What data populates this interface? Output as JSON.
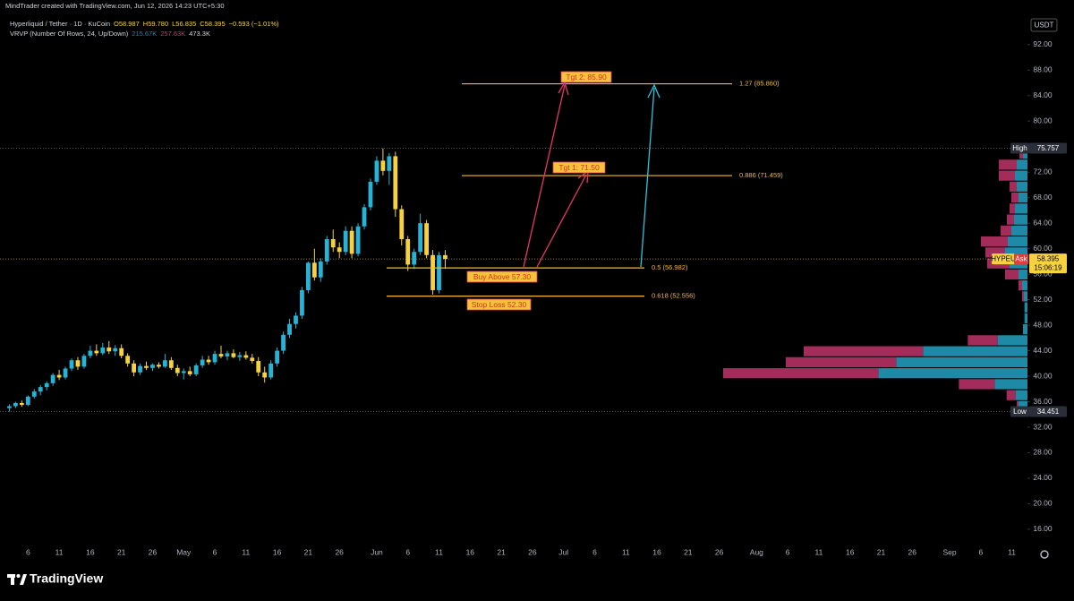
{
  "header": {
    "credit": "MindTrader created with TradingView.com, Jun 12, 2026 14:23 UTC+5:30",
    "symbol": "Hyperliquid / Tether · 1D · KuCoin",
    "ohlc": [
      "O58.987",
      "H59.780",
      "L56.835",
      "C58.395",
      "−0.593 (−1.01%)"
    ],
    "indicator": "VRVP (Number Of Rows, 24, Up/Down)",
    "indicator_values": [
      "215.67K",
      "257.63K",
      "473.3K"
    ]
  },
  "chart_data": {
    "type": "candlestick",
    "x": [
      "2026-04-03",
      "2026-04-04",
      "2026-04-05",
      "2026-04-06",
      "2026-04-07",
      "2026-04-08",
      "2026-04-09",
      "2026-04-10",
      "2026-04-11",
      "2026-04-12",
      "2026-04-13",
      "2026-04-14",
      "2026-04-15",
      "2026-04-16",
      "2026-04-17",
      "2026-04-18",
      "2026-04-19",
      "2026-04-20",
      "2026-04-21",
      "2026-04-22",
      "2026-04-23",
      "2026-04-24",
      "2026-04-25",
      "2026-04-26",
      "2026-04-27",
      "2026-04-28",
      "2026-04-29",
      "2026-04-30",
      "2026-05-01",
      "2026-05-02",
      "2026-05-03",
      "2026-05-04",
      "2026-05-05",
      "2026-05-06",
      "2026-05-07",
      "2026-05-08",
      "2026-05-09",
      "2026-05-10",
      "2026-05-11",
      "2026-05-12",
      "2026-05-13",
      "2026-05-14",
      "2026-05-15",
      "2026-05-16",
      "2026-05-17",
      "2026-05-18",
      "2026-05-19",
      "2026-05-20",
      "2026-05-21",
      "2026-05-22",
      "2026-05-23",
      "2026-05-24",
      "2026-05-25",
      "2026-05-26",
      "2026-05-27",
      "2026-05-28",
      "2026-05-29",
      "2026-05-30",
      "2026-05-31",
      "2026-06-01",
      "2026-06-02",
      "2026-06-03",
      "2026-06-04",
      "2026-06-05",
      "2026-06-06",
      "2026-06-07",
      "2026-06-08",
      "2026-06-09",
      "2026-06-10",
      "2026-06-11",
      "2026-06-12"
    ],
    "open": [
      35,
      35.3,
      35.8,
      35.5,
      36.8,
      37.6,
      38.3,
      38.9,
      40.2,
      39.8,
      41.2,
      42.5,
      41.5,
      43.2,
      44,
      43.6,
      44.5,
      43.9,
      44.4,
      43.2,
      42,
      40.6,
      41.6,
      41.3,
      41.8,
      41.5,
      42.5,
      41.3,
      40.5,
      40.8,
      40.3,
      41.7,
      42.6,
      42.2,
      43.5,
      43.1,
      43.6,
      43,
      43.3,
      42.9,
      42.4,
      40.6,
      39.8,
      42,
      44,
      46.5,
      48.2,
      49.5,
      53.5,
      57.8,
      55.5,
      58,
      61.5,
      60.2,
      59.5,
      62.8,
      59.2,
      63.5,
      66.5,
      70.5,
      73.8,
      72.2,
      74.5,
      66.2,
      61.5,
      57.5,
      59.5,
      64,
      59,
      53.5,
      58.987
    ],
    "high": [
      35.6,
      36,
      36.2,
      37,
      38,
      38.6,
      39.2,
      40.5,
      41,
      41.5,
      42.8,
      43,
      43.5,
      44.8,
      45,
      45.2,
      45.5,
      44.9,
      45,
      43.6,
      42.5,
      42,
      42.3,
      42,
      42.2,
      43.5,
      43,
      41.8,
      41.2,
      41.5,
      42,
      43.2,
      43.2,
      44,
      44.8,
      44,
      44.2,
      43.8,
      43.9,
      43.5,
      43,
      41.5,
      42.5,
      44.5,
      47,
      49,
      50,
      54,
      58,
      60,
      58.5,
      62,
      63,
      61,
      63.5,
      63.5,
      64,
      67,
      71,
      74.5,
      75.757,
      75,
      75.2,
      66.8,
      62,
      60,
      65.5,
      64.5,
      59.8,
      59.5,
      59.78
    ],
    "low": [
      34.451,
      35,
      35.2,
      35.3,
      36.5,
      37,
      37.8,
      38.5,
      39.4,
      39.5,
      40.8,
      41,
      41.2,
      42.8,
      43.2,
      43.3,
      43.5,
      43.2,
      42.8,
      41.5,
      40,
      40.2,
      41,
      40.8,
      41.2,
      41.3,
      41,
      40,
      39.5,
      40,
      40,
      41.3,
      41.8,
      41.8,
      42.8,
      42.5,
      42.8,
      42.4,
      42.6,
      42,
      40,
      39,
      39.5,
      41.5,
      43.5,
      46,
      47.5,
      49,
      53,
      55,
      54.8,
      57.5,
      59.5,
      58.5,
      59,
      58.5,
      58.8,
      63,
      66,
      70,
      71.5,
      70,
      65,
      60.5,
      56.5,
      56.8,
      59,
      58.5,
      52.8,
      53,
      56.835
    ],
    "close": [
      35.3,
      35.8,
      35.5,
      36.8,
      37.6,
      38.3,
      38.9,
      40.2,
      39.8,
      41.2,
      42.5,
      41.5,
      43.2,
      44,
      43.6,
      44.5,
      43.9,
      44.4,
      43.2,
      42,
      40.6,
      41.6,
      41.3,
      41.8,
      41.5,
      42.5,
      41.3,
      40.5,
      40.8,
      40.3,
      41.7,
      42.6,
      42.2,
      43.5,
      43.1,
      43.6,
      43,
      43.3,
      42.9,
      42.4,
      40.6,
      39.8,
      42,
      44,
      46.5,
      48.2,
      49.5,
      53.5,
      57.8,
      55.5,
      58,
      61.5,
      60.2,
      59.5,
      62.8,
      59.2,
      63.5,
      66.5,
      70.5,
      73.8,
      72.2,
      74.5,
      66.2,
      61.5,
      57.5,
      59.5,
      64,
      59,
      53.5,
      58.987,
      58.395
    ],
    "up_color": "#26b4d6",
    "down_color": "#f6d23e",
    "xlim": [
      "2026-04-02",
      "2026-09-14"
    ],
    "xticks": [
      {
        "value": "2026-04-06",
        "label": "6"
      },
      {
        "value": "2026-04-11",
        "label": "11"
      },
      {
        "value": "2026-04-16",
        "label": "16"
      },
      {
        "value": "2026-04-21",
        "label": "21"
      },
      {
        "value": "2026-04-26",
        "label": "26"
      },
      {
        "value": "2026-05-01",
        "label": "May"
      },
      {
        "value": "2026-05-06",
        "label": "6"
      },
      {
        "value": "2026-05-11",
        "label": "11"
      },
      {
        "value": "2026-05-16",
        "label": "16"
      },
      {
        "value": "2026-05-21",
        "label": "21"
      },
      {
        "value": "2026-05-26",
        "label": "26"
      },
      {
        "value": "2026-06-01",
        "label": "Jun"
      },
      {
        "value": "2026-06-06",
        "label": "6"
      },
      {
        "value": "2026-06-11",
        "label": "11"
      },
      {
        "value": "2026-06-16",
        "label": "16"
      },
      {
        "value": "2026-06-21",
        "label": "21"
      },
      {
        "value": "2026-06-26",
        "label": "26"
      },
      {
        "value": "2026-07-01",
        "label": "Jul"
      },
      {
        "value": "2026-07-06",
        "label": "6"
      },
      {
        "value": "2026-07-11",
        "label": "11"
      },
      {
        "value": "2026-07-16",
        "label": "16"
      },
      {
        "value": "2026-07-21",
        "label": "21"
      },
      {
        "value": "2026-07-26",
        "label": "26"
      },
      {
        "value": "2026-08-01",
        "label": "Aug"
      },
      {
        "value": "2026-08-06",
        "label": "6"
      },
      {
        "value": "2026-08-11",
        "label": "11"
      },
      {
        "value": "2026-08-16",
        "label": "16"
      },
      {
        "value": "2026-08-21",
        "label": "21"
      },
      {
        "value": "2026-08-26",
        "label": "26"
      },
      {
        "value": "2026-09-01",
        "label": "Sep"
      },
      {
        "value": "2026-09-06",
        "label": "6"
      },
      {
        "value": "2026-09-11",
        "label": "11"
      }
    ],
    "ylim": [
      13.6,
      99.0
    ],
    "yticks": [
      {
        "value": 16,
        "label": "16.00"
      },
      {
        "value": 20,
        "label": "20.00"
      },
      {
        "value": 24,
        "label": "24.00"
      },
      {
        "value": 28,
        "label": "28.00"
      },
      {
        "value": 32,
        "label": "32.00"
      },
      {
        "value": 36,
        "label": "36.00"
      },
      {
        "value": 40,
        "label": "40.00"
      },
      {
        "value": 44,
        "label": "44.00"
      },
      {
        "value": 48,
        "label": "48.00"
      },
      {
        "value": 52,
        "label": "52.00"
      },
      {
        "value": 56,
        "label": "56.00"
      },
      {
        "value": 60,
        "label": "60.00"
      },
      {
        "value": 64,
        "label": "64.00"
      },
      {
        "value": 68,
        "label": "68.00"
      },
      {
        "value": 72,
        "label": "72.00"
      },
      {
        "value": 80,
        "label": "80.00"
      },
      {
        "value": 84,
        "label": "84.00"
      },
      {
        "value": 88,
        "label": "88.00"
      },
      {
        "value": 92,
        "label": "92.00"
      }
    ],
    "currency": "USDT",
    "high_label": "High",
    "high_value": 75.757,
    "low_label": "Low",
    "low_value": 34.451,
    "last_price": 58.395,
    "symbol_tag": "HYPEU",
    "ask_label": "Ask",
    "countdown": "15:06:19",
    "levels": [
      {
        "value": 85.86,
        "label": "1.27 (85.860)"
      },
      {
        "value": 71.459,
        "label": "0.886 (71.459)"
      },
      {
        "value": 56.982,
        "label": "0.5 (56.982)"
      },
      {
        "value": 52.556,
        "label": "0.618 (52.556)"
      }
    ],
    "level_color": "#f5b82e",
    "notes": [
      "Tgt 2: 85.90",
      "Tgt 1: 71.50",
      "Buy Above 57.30",
      "Stop Loss 52.30"
    ],
    "volume_profile": {
      "up_color": "#1f8aa6",
      "down_color": "#a32c5a",
      "up": [
        3,
        4,
        11,
        50,
        44,
        35,
        10,
        1.5,
        1,
        1,
        1.2,
        1.8,
        3,
        6,
        7.5,
        6.6,
        5.4,
        4.5,
        4.2,
        3,
        3.6,
        4.2,
        3.6,
        1.5
      ],
      "down": [
        0.6,
        3,
        12,
        52,
        37,
        40,
        10,
        0,
        0,
        0,
        0.6,
        1.2,
        4.5,
        7.5,
        6.6,
        9,
        3.6,
        2.4,
        1.8,
        2.4,
        2.4,
        5.4,
        6,
        1.2
      ]
    }
  },
  "footer": {
    "brand": "TradingView"
  }
}
